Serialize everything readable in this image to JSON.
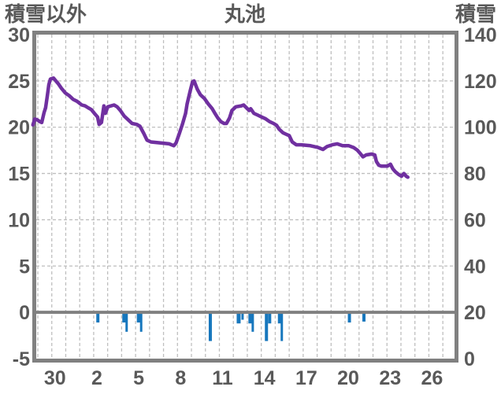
{
  "header": {
    "left_axis_title": "積雪以外",
    "chart_title": "丸池",
    "right_axis_title": "積雪"
  },
  "chart_data": {
    "type": "combo",
    "title": "丸池",
    "left_axis": {
      "label": "積雪以外",
      "min": -5,
      "max": 30,
      "ticks": [
        30,
        25,
        20,
        15,
        10,
        5,
        0,
        -5
      ]
    },
    "right_axis": {
      "label": "積雪",
      "min": 0,
      "max": 140,
      "ticks": [
        140,
        120,
        100,
        80,
        60,
        40,
        20,
        0
      ]
    },
    "x_axis": {
      "tick_labels": [
        "30",
        "2",
        "5",
        "8",
        "11",
        "14",
        "17",
        "20",
        "23",
        "26"
      ],
      "gridline_count": 30,
      "label_first_gridline": 1,
      "label_step": 3
    },
    "grid": {
      "h_dashed_at": [
        25,
        20,
        15,
        10,
        5
      ],
      "zero_line_at": 0
    },
    "colors": {
      "line": "#7030a0",
      "bar": "#1777bd",
      "grid": "#bfbfbf",
      "border": "#808080",
      "zero_line": "#808080",
      "text": "#595959",
      "background": "#ffffff"
    },
    "series": [
      {
        "name": "積雪",
        "type": "line",
        "axis": "right",
        "unit": "cm",
        "points": [
          [
            -0.35,
            101
          ],
          [
            -0.22,
            103.5
          ],
          [
            -0.05,
            103.2
          ],
          [
            0.15,
            102.4
          ],
          [
            0.28,
            102
          ],
          [
            0.45,
            106.4
          ],
          [
            0.56,
            108.4
          ],
          [
            0.68,
            113.6
          ],
          [
            0.79,
            118.4
          ],
          [
            0.9,
            120.8
          ],
          [
            1.13,
            121.2
          ],
          [
            1.29,
            120
          ],
          [
            1.46,
            118.8
          ],
          [
            1.69,
            116.8
          ],
          [
            1.97,
            114.8
          ],
          [
            2.25,
            113.6
          ],
          [
            2.53,
            112
          ],
          [
            2.81,
            111.2
          ],
          [
            3.15,
            109.6
          ],
          [
            3.38,
            109.2
          ],
          [
            3.6,
            108.4
          ],
          [
            3.83,
            107.6
          ],
          [
            4.05,
            106
          ],
          [
            4.28,
            104.4
          ],
          [
            4.39,
            101.2
          ],
          [
            4.56,
            102
          ],
          [
            4.73,
            109.2
          ],
          [
            4.84,
            106
          ],
          [
            5.01,
            108.8
          ],
          [
            5.46,
            109.6
          ],
          [
            5.68,
            108.8
          ],
          [
            5.91,
            107.2
          ],
          [
            6.19,
            104.8
          ],
          [
            6.47,
            103.2
          ],
          [
            6.75,
            101.6
          ],
          [
            7.09,
            101.2
          ],
          [
            7.31,
            100.4
          ],
          [
            7.6,
            97.2
          ],
          [
            7.82,
            94.4
          ],
          [
            8.1,
            93.6
          ],
          [
            8.8,
            93.2
          ],
          [
            9.4,
            92.8
          ],
          [
            9.74,
            92
          ],
          [
            9.9,
            93.2
          ],
          [
            10.13,
            97.2
          ],
          [
            10.35,
            101.2
          ],
          [
            10.58,
            106
          ],
          [
            10.69,
            110
          ],
          [
            10.91,
            115.6
          ],
          [
            11.08,
            119.6
          ],
          [
            11.19,
            120
          ],
          [
            11.42,
            116.4
          ],
          [
            11.64,
            114
          ],
          [
            11.93,
            112.4
          ],
          [
            12.21,
            110
          ],
          [
            12.49,
            108
          ],
          [
            12.72,
            105.6
          ],
          [
            12.89,
            104
          ],
          [
            13.11,
            102.4
          ],
          [
            13.34,
            101.6
          ],
          [
            13.51,
            101.6
          ],
          [
            13.73,
            104
          ],
          [
            13.9,
            107.2
          ],
          [
            14.18,
            108.8
          ],
          [
            14.57,
            109.2
          ],
          [
            14.74,
            109.6
          ],
          [
            15.13,
            107.2
          ],
          [
            15.24,
            108
          ],
          [
            15.47,
            106
          ],
          [
            15.75,
            105.2
          ],
          [
            16.03,
            104.4
          ],
          [
            16.31,
            103.6
          ],
          [
            16.6,
            102.4
          ],
          [
            16.88,
            101.6
          ],
          [
            17.1,
            100.8
          ],
          [
            17.27,
            99.2
          ],
          [
            17.55,
            97.6
          ],
          [
            17.83,
            96.8
          ],
          [
            18,
            96.4
          ],
          [
            18.22,
            93.6
          ],
          [
            18.51,
            92.4
          ],
          [
            18.84,
            92.4
          ],
          [
            19.52,
            92
          ],
          [
            20.08,
            91.2
          ],
          [
            20.42,
            90.4
          ],
          [
            20.7,
            91.6
          ],
          [
            21.09,
            92.4
          ],
          [
            21.43,
            92.8
          ],
          [
            21.82,
            92
          ],
          [
            22.27,
            92
          ],
          [
            22.61,
            91.2
          ],
          [
            22.89,
            90
          ],
          [
            23.06,
            88.8
          ],
          [
            23.28,
            87.2
          ],
          [
            23.51,
            88
          ],
          [
            23.9,
            88.4
          ],
          [
            24.13,
            88
          ],
          [
            24.24,
            85.2
          ],
          [
            24.41,
            83.6
          ],
          [
            24.58,
            83.2
          ],
          [
            25.03,
            83.2
          ],
          [
            25.25,
            84
          ],
          [
            25.42,
            82
          ],
          [
            25.59,
            80.8
          ],
          [
            25.82,
            79.6
          ],
          [
            26.04,
            78.8
          ],
          [
            26.21,
            80
          ],
          [
            26.38,
            78.8
          ],
          [
            26.49,
            78.4
          ]
        ]
      },
      {
        "name": "積雪以外",
        "type": "bar",
        "axis": "left",
        "bars": [
          [
            4.3,
            -1.1,
            4
          ],
          [
            6.19,
            -1.1,
            5
          ],
          [
            6.36,
            -2.1,
            3
          ],
          [
            7.23,
            -1.1,
            5
          ],
          [
            7.4,
            -2.1,
            3
          ],
          [
            12.35,
            -3.1,
            4
          ],
          [
            14.38,
            -1.2,
            5
          ],
          [
            14.66,
            -0.8,
            3
          ],
          [
            15.22,
            -1.2,
            5
          ],
          [
            15.39,
            -2.1,
            3
          ],
          [
            16.37,
            -3.1,
            4
          ],
          [
            16.6,
            -1.2,
            4
          ],
          [
            17.33,
            -1.2,
            5
          ],
          [
            17.47,
            -3.1,
            3
          ],
          [
            22.31,
            -1.1,
            4
          ],
          [
            23.35,
            -1,
            4
          ]
        ]
      }
    ]
  }
}
